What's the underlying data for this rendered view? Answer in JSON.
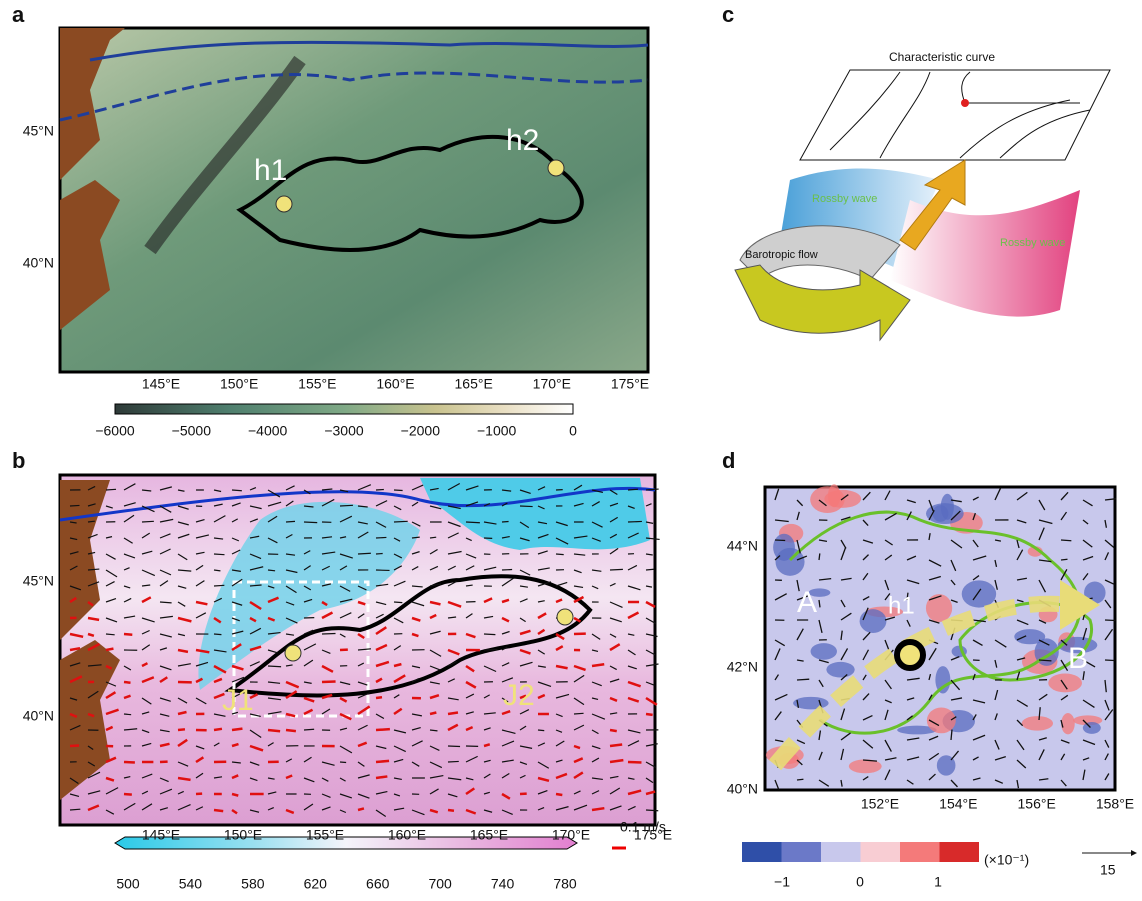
{
  "panel_a": {
    "label": "a",
    "lat_labels": [
      "45°N",
      "40°N"
    ],
    "lon_labels": [
      "145°E",
      "150°E",
      "155°E",
      "160°E",
      "165°E",
      "170°E",
      "175°E"
    ],
    "colorbar_labels": [
      "−6000",
      "−5000",
      "−4000",
      "−3000",
      "−2000",
      "−1000",
      "0"
    ],
    "annotations": [
      "h1",
      "h2"
    ]
  },
  "panel_b": {
    "label": "b",
    "lat_labels": [
      "45°N",
      "40°N"
    ],
    "lon_labels": [
      "145°E",
      "150°E",
      "155°E",
      "160°E",
      "165°E",
      "170°E",
      "175°E"
    ],
    "colorbar_labels": [
      "500",
      "540",
      "580",
      "620",
      "660",
      "700",
      "740",
      "780"
    ],
    "annotations": [
      "J1",
      "J2"
    ],
    "vector_scale": "0.1 m/s"
  },
  "panel_c": {
    "label": "c",
    "characteristic_curve": "Characteristic curve",
    "rossby_wave_left": "Rossby wave",
    "rossby_wave_right": "Rossby wave",
    "barotropic_flow": "Barotropic flow"
  },
  "panel_d": {
    "label": "d",
    "lat_labels": [
      "44°N",
      "42°N",
      "40°N"
    ],
    "lon_labels": [
      "152°E",
      "154°E",
      "156°E",
      "158°E"
    ],
    "colorbar_labels": [
      "−1",
      "0",
      "1"
    ],
    "colorbar_unit": "(×10⁻¹)",
    "annotations": [
      "A",
      "h1",
      "B"
    ],
    "vector_scale": "15"
  }
}
